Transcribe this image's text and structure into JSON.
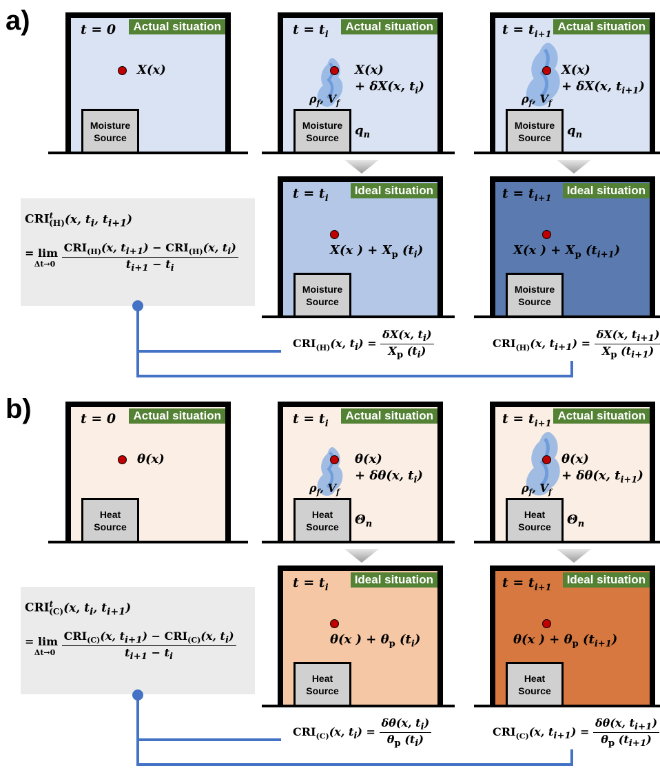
{
  "panels": [
    {
      "label": "a)",
      "actual_tag": "Actual situation",
      "ideal_tag": "Ideal situation",
      "source_line1": "Moisture",
      "source_line2": "Source",
      "t0": "t = 0",
      "ti": "t = t",
      "ti_sub": "i",
      "ti1_sub": "i+1",
      "point0": "X(x)",
      "point_i_1": "X(x)",
      "point_i_2": "+ δX(x, t",
      "point_i_sub": "i",
      "point_i1_sub": "i+1",
      "flux": "q",
      "flux_sub": "n",
      "ideal_i": "X(x ) + X",
      "ideal_sub": "p",
      "fluid": "ρ",
      "cri_sub": "(H)",
      "var": "X",
      "dvar": "δX",
      "box_colors": [
        "#dae3f3",
        "#dae3f3",
        "#dae3f3",
        "#b4c7e7",
        "#5b7bb0"
      ]
    },
    {
      "label": "b)",
      "actual_tag": "Actual situation",
      "ideal_tag": "Ideal situation",
      "source_line1": "Heat",
      "source_line2": "Source",
      "t0": "t = 0",
      "ti": "t = t",
      "ti_sub": "i",
      "ti1_sub": "i+1",
      "point0": "θ(x)",
      "point_i_1": "θ(x)",
      "point_i_2": "+ δθ(x, t",
      "point_i_sub": "i",
      "point_i1_sub": "i+1",
      "flux": "Θ",
      "flux_sub": "n",
      "ideal_i": "θ(x ) + θ",
      "ideal_sub": "p",
      "fluid": "ρ",
      "cri_sub": "(C)",
      "var": "θ",
      "dvar": "δθ",
      "box_colors": [
        "#fbeee4",
        "#fbeee4",
        "#fbeee4",
        "#f6c7a4",
        "#d6783f"
      ]
    }
  ],
  "formula": {
    "cri": "CRI",
    "t_sup": "t",
    "args": "(x, t",
    "lim": "= lim",
    "lim_sub": "Δt→0",
    "den": "t",
    "minus": " − t"
  },
  "colors": {
    "tag_green": "#548235",
    "connector_blue": "#4472c4",
    "dot_red": "#c00000",
    "gray_box": "#ebebeb"
  }
}
